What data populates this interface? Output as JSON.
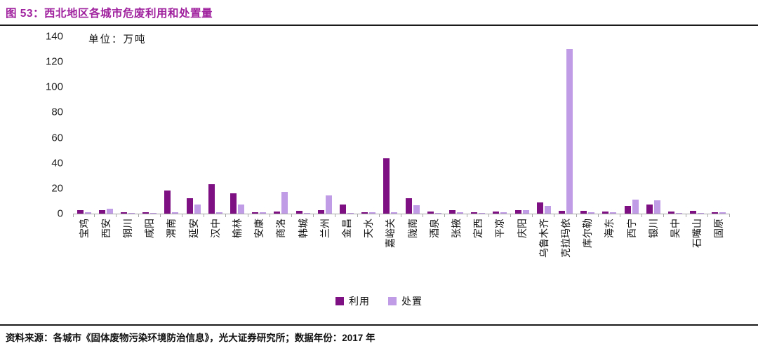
{
  "figure": {
    "title": "图 53：西北地区各城市危废利用和处置量",
    "unit_label": "单位：万吨",
    "source_note": "资料来源：各城市《固体废物污染环境防治信息》，光大证券研究所；数据年份：2017 年"
  },
  "colors": {
    "title": "#A0219E",
    "rule": "#1A1A1A",
    "axis": "#A6A6A6",
    "text": "#1A1A1A",
    "bar_use": "#7E1083",
    "bar_dispose": "#C09CE6"
  },
  "legend": [
    {
      "label": "利用",
      "color": "#7E1083"
    },
    {
      "label": "处置",
      "color": "#C09CE6"
    }
  ],
  "chart_data": {
    "type": "bar",
    "title": "西北地区各城市危废利用和处置量",
    "unit": "万吨",
    "categories": [
      "宝鸡",
      "西安",
      "铜川",
      "咸阳",
      "渭南",
      "延安",
      "汉中",
      "榆林",
      "安康",
      "商洛",
      "韩城",
      "兰州",
      "金昌",
      "天水",
      "嘉峪关",
      "陇南",
      "酒泉",
      "张掖",
      "定西",
      "平凉",
      "庆阳",
      "乌鲁木齐",
      "克拉玛依",
      "库尔勒",
      "海东",
      "西宁",
      "银川",
      "吴中",
      "石嘴山",
      "固原"
    ],
    "series": [
      {
        "name": "利用",
        "color": "#7E1083",
        "values": [
          3,
          2.5,
          1,
          1,
          18.5,
          12,
          23,
          16,
          1,
          1.5,
          2,
          2.5,
          7,
          1,
          44,
          12,
          1.5,
          3,
          1,
          1.5,
          2.5,
          9,
          2,
          2,
          1.5,
          6,
          7,
          1.5,
          2,
          1
        ]
      },
      {
        "name": "处置",
        "color": "#C09CE6",
        "values": [
          1,
          4,
          0.5,
          0.5,
          1,
          7,
          1,
          7,
          1,
          17,
          0.5,
          14.5,
          0.5,
          1,
          1,
          6.5,
          0.5,
          1,
          0.5,
          1,
          3,
          6,
          130,
          1,
          1,
          11,
          10.5,
          0.5,
          0.5,
          1
        ]
      }
    ],
    "ylim": [
      0,
      140
    ],
    "yticks": [
      140,
      120,
      100,
      80,
      60,
      40,
      20,
      0
    ],
    "xlabel": "",
    "ylabel": "",
    "legend_position": "bottom",
    "grid": false,
    "data_year": "2017"
  }
}
